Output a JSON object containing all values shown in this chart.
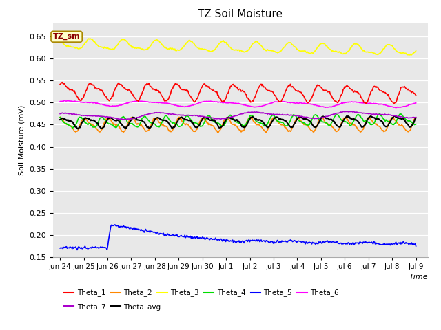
{
  "title": "TZ Soil Moisture",
  "xlabel": "Time",
  "ylabel": "Soil Moisture (mV)",
  "ylim": [
    0.15,
    0.68
  ],
  "yticks": [
    0.15,
    0.2,
    0.25,
    0.3,
    0.35,
    0.4,
    0.45,
    0.5,
    0.55,
    0.6,
    0.65
  ],
  "n_points": 500,
  "bg_color": "#e8e8e8",
  "fig_bg": "#ffffff",
  "series": {
    "Theta_1": {
      "color": "#ff0000",
      "base": 0.527,
      "amp": 0.016,
      "period": 1.2,
      "trend": -0.0005
    },
    "Theta_2": {
      "color": "#ff8800",
      "base": 0.45,
      "amp": 0.013,
      "period": 1.0,
      "trend": 0.0
    },
    "Theta_3": {
      "color": "#ffff00",
      "base": 0.632,
      "amp": 0.01,
      "period": 1.4,
      "trend": -0.001
    },
    "Theta_4": {
      "color": "#00dd00",
      "base": 0.454,
      "amp": 0.01,
      "period": 0.9,
      "trend": 0.0005
    },
    "Theta_5": {
      "color": "#0000ff"
    },
    "Theta_6": {
      "color": "#ff00ff",
      "base": 0.499,
      "amp": 0.005,
      "period": 3.0,
      "trend": -0.0002
    },
    "Theta_7": {
      "color": "#aa00cc",
      "base": 0.469,
      "amp": 0.006,
      "period": 4.0,
      "trend": 0.0003
    },
    "Theta_avg": {
      "color": "#000000",
      "base": 0.455,
      "amp": 0.01,
      "period": 1.0,
      "trend": 0.0003
    }
  },
  "xtick_labels": [
    "Jun 24",
    "Jun 25",
    "Jun 26",
    "Jun 27",
    "Jun 28",
    "Jun 29",
    "Jun 30",
    "Jul 1",
    "Jul 2",
    "Jul 3",
    "Jul 4",
    "Jul 5",
    "Jul 6",
    "Jul 7",
    "Jul 8",
    "Jul 9"
  ],
  "xtick_positions": [
    0,
    1,
    2,
    3,
    4,
    5,
    6,
    7,
    8,
    9,
    10,
    11,
    12,
    13,
    14,
    15
  ],
  "xlim": [
    -0.3,
    15.5
  ],
  "annotation_text": "TZ_sm",
  "legend_row1": [
    "Theta_1",
    "Theta_2",
    "Theta_3",
    "Theta_4",
    "Theta_5",
    "Theta_6"
  ],
  "legend_row2": [
    "Theta_7",
    "Theta_avg"
  ]
}
